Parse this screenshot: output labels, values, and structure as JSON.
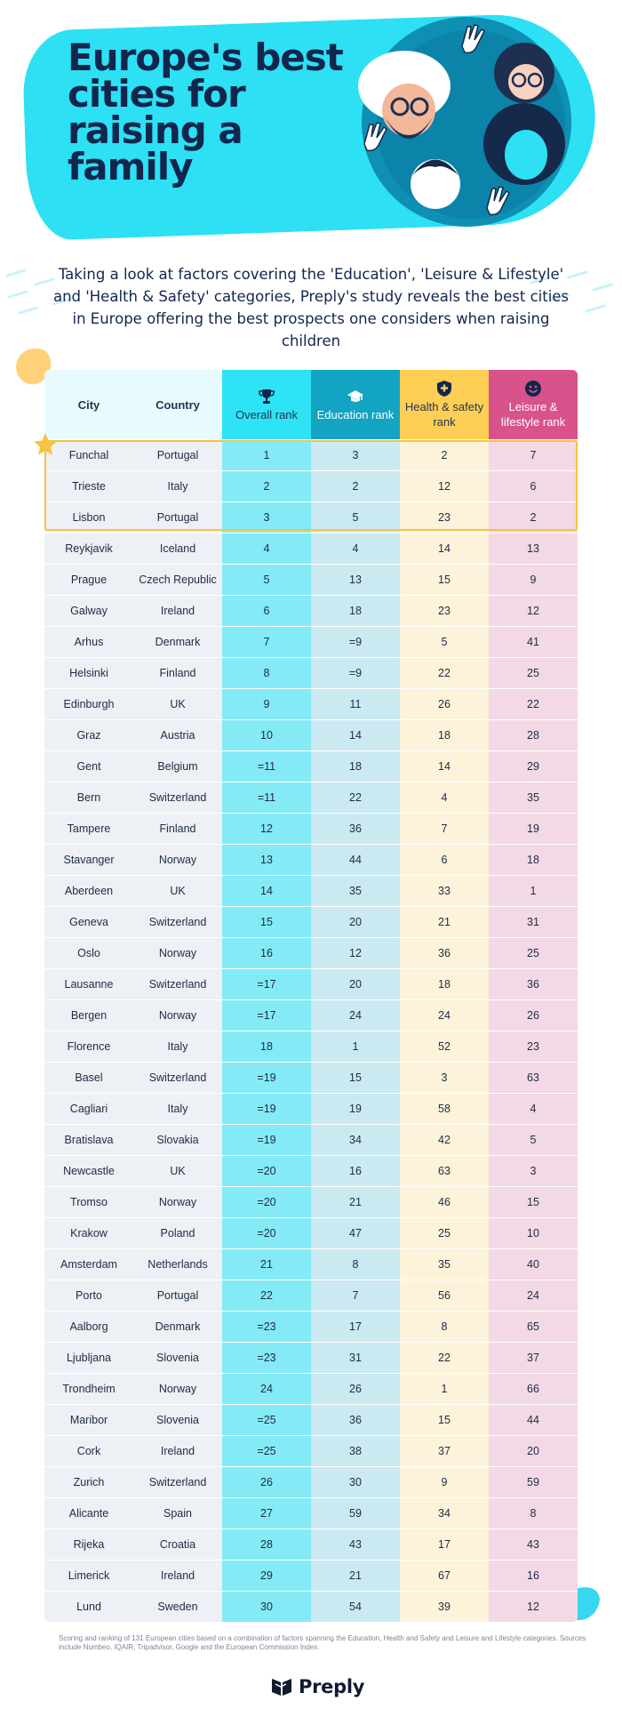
{
  "hero": {
    "title": "Europe's best cities for raising a family"
  },
  "intro": "Taking a look at factors covering the 'Education', 'Leisure & Lifestyle' and 'Health & Safety' categories, Preply's study reveals the best cities in Europe offering the best prospects one considers when raising children",
  "table": {
    "headers": {
      "city": "City",
      "country": "Country",
      "overall": "Overall rank",
      "education": "Education rank",
      "health": "Health & safety rank",
      "leisure": "Leisure & lifestyle rank"
    },
    "icons": {
      "overall": "trophy-icon",
      "education": "graduation-cap-icon",
      "health": "shield-cross-icon",
      "leisure": "smiley-icon"
    },
    "highlight_top": 3,
    "rows": [
      {
        "city": "Funchal",
        "country": "Portugal",
        "overall": "1",
        "education": "3",
        "health": "2",
        "leisure": "7"
      },
      {
        "city": "Trieste",
        "country": "Italy",
        "overall": "2",
        "education": "2",
        "health": "12",
        "leisure": "6"
      },
      {
        "city": "Lisbon",
        "country": "Portugal",
        "overall": "3",
        "education": "5",
        "health": "23",
        "leisure": "2"
      },
      {
        "city": "Reykjavik",
        "country": "Iceland",
        "overall": "4",
        "education": "4",
        "health": "14",
        "leisure": "13"
      },
      {
        "city": "Prague",
        "country": "Czech Republic",
        "overall": "5",
        "education": "13",
        "health": "15",
        "leisure": "9"
      },
      {
        "city": "Galway",
        "country": "Ireland",
        "overall": "6",
        "education": "18",
        "health": "23",
        "leisure": "12"
      },
      {
        "city": "Arhus",
        "country": "Denmark",
        "overall": "7",
        "education": "=9",
        "health": "5",
        "leisure": "41"
      },
      {
        "city": "Helsinki",
        "country": "Finland",
        "overall": "8",
        "education": "=9",
        "health": "22",
        "leisure": "25"
      },
      {
        "city": "Edinburgh",
        "country": "UK",
        "overall": "9",
        "education": "11",
        "health": "26",
        "leisure": "22"
      },
      {
        "city": "Graz",
        "country": "Austria",
        "overall": "10",
        "education": "14",
        "health": "18",
        "leisure": "28"
      },
      {
        "city": "Gent",
        "country": "Belgium",
        "overall": "=11",
        "education": "18",
        "health": "14",
        "leisure": "29"
      },
      {
        "city": "Bern",
        "country": "Switzerland",
        "overall": "=11",
        "education": "22",
        "health": "4",
        "leisure": "35"
      },
      {
        "city": "Tampere",
        "country": "Finland",
        "overall": "12",
        "education": "36",
        "health": "7",
        "leisure": "19"
      },
      {
        "city": "Stavanger",
        "country": "Norway",
        "overall": "13",
        "education": "44",
        "health": "6",
        "leisure": "18"
      },
      {
        "city": "Aberdeen",
        "country": "UK",
        "overall": "14",
        "education": "35",
        "health": "33",
        "leisure": "1"
      },
      {
        "city": "Geneva",
        "country": "Switzerland",
        "overall": "15",
        "education": "20",
        "health": "21",
        "leisure": "31"
      },
      {
        "city": "Oslo",
        "country": "Norway",
        "overall": "16",
        "education": "12",
        "health": "36",
        "leisure": "25"
      },
      {
        "city": "Lausanne",
        "country": "Switzerland",
        "overall": "=17",
        "education": "20",
        "health": "18",
        "leisure": "36"
      },
      {
        "city": "Bergen",
        "country": "Norway",
        "overall": "=17",
        "education": "24",
        "health": "24",
        "leisure": "26"
      },
      {
        "city": "Florence",
        "country": "Italy",
        "overall": "18",
        "education": "1",
        "health": "52",
        "leisure": "23"
      },
      {
        "city": "Basel",
        "country": "Switzerland",
        "overall": "=19",
        "education": "15",
        "health": "3",
        "leisure": "63"
      },
      {
        "city": "Cagliari",
        "country": "Italy",
        "overall": "=19",
        "education": "19",
        "health": "58",
        "leisure": "4"
      },
      {
        "city": "Bratislava",
        "country": "Slovakia",
        "overall": "=19",
        "education": "34",
        "health": "42",
        "leisure": "5"
      },
      {
        "city": "Newcastle",
        "country": "UK",
        "overall": "=20",
        "education": "16",
        "health": "63",
        "leisure": "3"
      },
      {
        "city": "Tromso",
        "country": "Norway",
        "overall": "=20",
        "education": "21",
        "health": "46",
        "leisure": "15"
      },
      {
        "city": "Krakow",
        "country": "Poland",
        "overall": "=20",
        "education": "47",
        "health": "25",
        "leisure": "10"
      },
      {
        "city": "Amsterdam",
        "country": "Netherlands",
        "overall": "21",
        "education": "8",
        "health": "35",
        "leisure": "40"
      },
      {
        "city": "Porto",
        "country": "Portugal",
        "overall": "22",
        "education": "7",
        "health": "56",
        "leisure": "24"
      },
      {
        "city": "Aalborg",
        "country": "Denmark",
        "overall": "=23",
        "education": "17",
        "health": "8",
        "leisure": "65"
      },
      {
        "city": "Ljubljana",
        "country": "Slovenia",
        "overall": "=23",
        "education": "31",
        "health": "22",
        "leisure": "37"
      },
      {
        "city": "Trondheim",
        "country": "Norway",
        "overall": "24",
        "education": "26",
        "health": "1",
        "leisure": "66"
      },
      {
        "city": "Maribor",
        "country": "Slovenia",
        "overall": "=25",
        "education": "36",
        "health": "15",
        "leisure": "44"
      },
      {
        "city": "Cork",
        "country": "Ireland",
        "overall": "=25",
        "education": "38",
        "health": "37",
        "leisure": "20"
      },
      {
        "city": "Zurich",
        "country": "Switzerland",
        "overall": "26",
        "education": "30",
        "health": "9",
        "leisure": "59"
      },
      {
        "city": "Alicante",
        "country": "Spain",
        "overall": "27",
        "education": "59",
        "health": "34",
        "leisure": "8"
      },
      {
        "city": "Rijeka",
        "country": "Croatia",
        "overall": "28",
        "education": "43",
        "health": "17",
        "leisure": "43"
      },
      {
        "city": "Limerick",
        "country": "Ireland",
        "overall": "29",
        "education": "21",
        "health": "67",
        "leisure": "16"
      },
      {
        "city": "Lund",
        "country": "Sweden",
        "overall": "30",
        "education": "54",
        "health": "39",
        "leisure": "12"
      }
    ]
  },
  "footnote": "Scoring and ranking of 131 European cities based on a combination of factors spanning the Education, Health and Safety and Leisure and Lifestyle categories. Sources include Numbeo, IQAIR, Tripadvisor, Google and the European Commission Index.",
  "logo": "Preply",
  "colors": {
    "navy": "#12264d",
    "cyan": "#2de0f4",
    "education": "#13a3c3",
    "health": "#ffce55",
    "leisure": "#d8528c",
    "highlight": "#f5c242"
  }
}
